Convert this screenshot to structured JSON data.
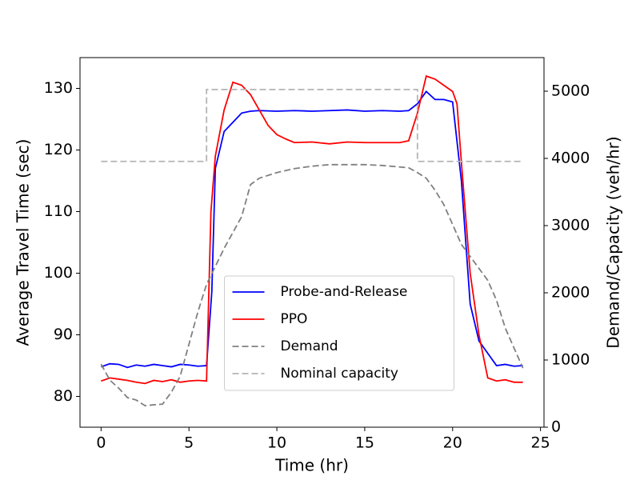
{
  "chart_data": {
    "type": "line",
    "xlabel": "Time (hr)",
    "ylabel": "Average Travel Time (sec)",
    "y2label": "Demand/Capacity (veh/hr)",
    "xlim": [
      -1.2,
      25.2
    ],
    "xticks": [
      0,
      5,
      10,
      15,
      20,
      25
    ],
    "ylim": [
      75,
      135
    ],
    "yticks": [
      80,
      90,
      100,
      110,
      120,
      130
    ],
    "y2lim": [
      0,
      5500
    ],
    "y2ticks": [
      0,
      1000,
      2000,
      3000,
      4000,
      5000
    ],
    "legend": "lower center",
    "series": [
      {
        "name": "Probe-and-Release",
        "color": "#0000ff",
        "linestyle": "solid",
        "x": [
          0,
          0.5,
          1,
          1.5,
          2,
          2.5,
          3,
          3.5,
          4,
          4.5,
          5,
          5.5,
          6,
          6.3,
          6.5,
          7,
          7.5,
          8,
          8.5,
          9,
          10,
          11,
          12,
          13,
          14,
          15,
          16,
          17,
          17.5,
          18,
          18.5,
          19,
          19.5,
          20,
          20.5,
          21,
          21.5,
          22,
          22.5,
          23,
          23.5,
          24
        ],
        "values": [
          84.8,
          85.3,
          85.2,
          84.7,
          85.1,
          84.9,
          85.2,
          85,
          84.8,
          85.2,
          85.1,
          84.9,
          85,
          97,
          117,
          123,
          124.5,
          126,
          126.3,
          126.4,
          126.3,
          126.4,
          126.3,
          126.4,
          126.5,
          126.3,
          126.4,
          126.3,
          126.4,
          127.5,
          129.5,
          128.2,
          128.2,
          127.8,
          115,
          95,
          89,
          87,
          85,
          85.2,
          84.9,
          85
        ]
      },
      {
        "name": "PPO",
        "color": "#ff0000",
        "linestyle": "solid",
        "x": [
          0,
          0.5,
          1,
          1.5,
          2,
          2.5,
          3,
          3.5,
          4,
          4.5,
          5,
          5.5,
          6,
          6.25,
          6.5,
          7,
          7.5,
          8,
          8.5,
          9,
          9.5,
          10,
          10.5,
          11,
          12,
          13,
          14,
          15,
          16,
          17,
          17.5,
          18,
          18.5,
          19,
          19.5,
          20,
          20.25,
          20.5,
          21,
          21.5,
          22,
          22.5,
          23,
          23.5,
          24
        ],
        "values": [
          82.5,
          83,
          82.8,
          82.6,
          82.3,
          82.1,
          82.6,
          82.4,
          82.7,
          82.3,
          82.5,
          82.6,
          82.5,
          110,
          119,
          126.5,
          131,
          130.5,
          129,
          126.5,
          124,
          122.5,
          121.8,
          121.2,
          121.3,
          121,
          121.3,
          121.2,
          121.2,
          121.2,
          121.5,
          126,
          132,
          131.5,
          130.5,
          129.5,
          127.5,
          118,
          100,
          90,
          83,
          82.5,
          82.7,
          82.3,
          82.3
        ]
      },
      {
        "name": "Demand",
        "color": "#808080",
        "linestyle": "dashed",
        "axis": "y2",
        "x": [
          0,
          0.5,
          1,
          1.5,
          2,
          2.5,
          3,
          3.5,
          4,
          4.5,
          5,
          5.5,
          6,
          7,
          8,
          8.5,
          9,
          10,
          11,
          12,
          13,
          14,
          15,
          16,
          17,
          17.5,
          18,
          18.5,
          19,
          19.5,
          20,
          20.5,
          21,
          22,
          22.5,
          23,
          23.5,
          24
        ],
        "values": [
          938,
          700,
          582,
          440,
          404,
          320,
          333,
          344,
          522,
          760,
          1235,
          1710,
          2126,
          2660,
          3135,
          3610,
          3705,
          3789,
          3848,
          3884,
          3907,
          3907,
          3907,
          3895,
          3872,
          3860,
          3789,
          3705,
          3527,
          3313,
          3017,
          2720,
          2541,
          2185,
          1888,
          1473,
          1176,
          879
        ]
      },
      {
        "name": "Nominal capacity",
        "color": "#b4b4b4",
        "linestyle": "dashed",
        "axis": "y2",
        "x": [
          0,
          6,
          6,
          18,
          18,
          24
        ],
        "values": [
          3955,
          3955,
          5025,
          5025,
          3955,
          3955
        ]
      }
    ]
  }
}
